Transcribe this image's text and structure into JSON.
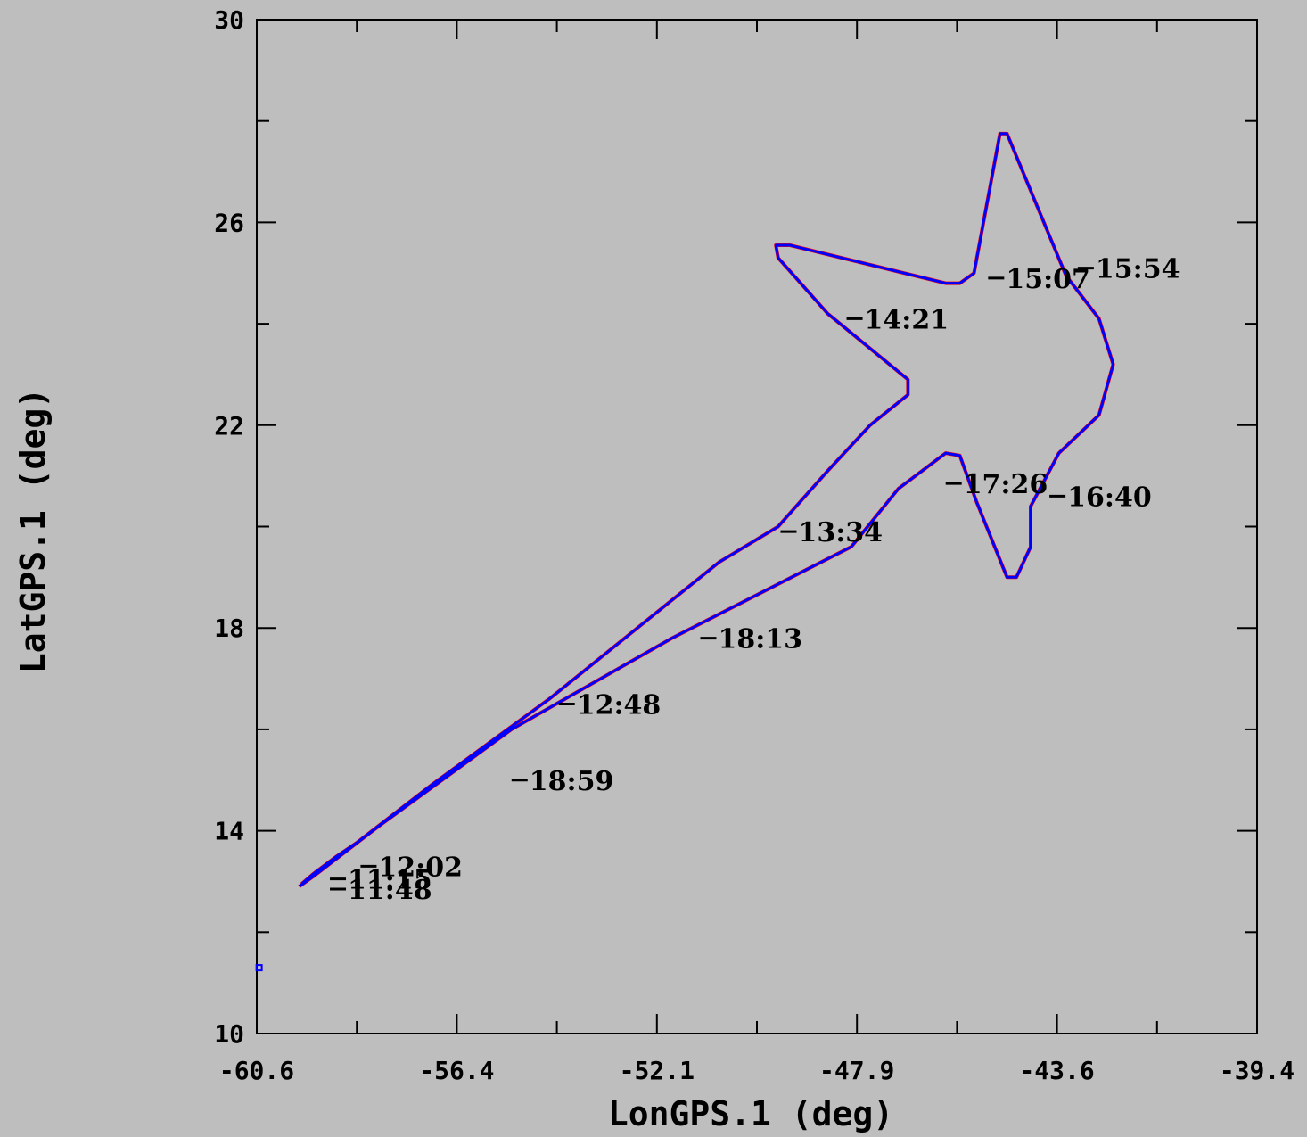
{
  "chart_data": {
    "type": "line",
    "xlabel": "LonGPS.1 (deg)",
    "ylabel": "LatGPS.1 (deg)",
    "xlim": [
      -60.6,
      -39.4
    ],
    "ylim": [
      10,
      30
    ],
    "x_ticks": [
      "-60.6",
      "-56.4",
      "-52.1",
      "-47.9",
      "-43.6",
      "-39.4"
    ],
    "y_ticks": [
      "10",
      "14",
      "18",
      "22",
      "26",
      "30"
    ],
    "colors": {
      "track": "#0000ff",
      "underlay": "#ff0000",
      "background": "#bebebe"
    },
    "series": [
      {
        "points": [
          [
            -59.65,
            12.95
          ],
          [
            -59.4,
            13.15
          ],
          [
            -58.9,
            13.5
          ],
          [
            -58.5,
            13.75
          ],
          [
            -56.9,
            14.9
          ],
          [
            -54.4,
            16.6
          ],
          [
            -50.8,
            19.3
          ],
          [
            -49.55,
            20.0
          ],
          [
            -48.5,
            21.1
          ],
          [
            -47.6,
            22.0
          ],
          [
            -46.8,
            22.6
          ],
          [
            -46.8,
            22.9
          ],
          [
            -48.5,
            24.2
          ],
          [
            -49.55,
            25.3
          ],
          [
            -49.6,
            25.55
          ],
          [
            -49.3,
            25.55
          ],
          [
            -46.0,
            24.8
          ],
          [
            -45.7,
            24.8
          ],
          [
            -45.4,
            25.0
          ],
          [
            -44.85,
            27.75
          ],
          [
            -44.7,
            27.75
          ],
          [
            -43.45,
            24.95
          ],
          [
            -42.75,
            24.1
          ],
          [
            -42.45,
            23.2
          ],
          [
            -42.75,
            22.2
          ],
          [
            -43.6,
            21.45
          ],
          [
            -44.2,
            20.4
          ],
          [
            -44.2,
            19.6
          ],
          [
            -44.5,
            19.0
          ],
          [
            -44.7,
            19.0
          ],
          [
            -45.35,
            20.5
          ],
          [
            -45.7,
            21.4
          ],
          [
            -46.0,
            21.45
          ],
          [
            -47.0,
            20.75
          ],
          [
            -48.0,
            19.6
          ],
          [
            -51.8,
            17.8
          ],
          [
            -55.2,
            16.0
          ],
          [
            -58.0,
            14.1
          ],
          [
            -59.4,
            13.1
          ],
          [
            -59.7,
            12.9
          ]
        ]
      }
    ],
    "isolated_points": [
      [
        -60.55,
        11.3
      ]
    ],
    "annotations": [
      {
        "text": "11:15",
        "x": -59.05,
        "y": 13.05
      },
      {
        "text": "11:48",
        "x": -59.05,
        "y": 12.85
      },
      {
        "text": "12:02",
        "x": -58.4,
        "y": 13.3
      },
      {
        "text": "12:48",
        "x": -54.2,
        "y": 16.5
      },
      {
        "text": "13:34",
        "x": -49.5,
        "y": 19.9
      },
      {
        "text": "14:21",
        "x": -48.1,
        "y": 24.1
      },
      {
        "text": "15:07",
        "x": -45.1,
        "y": 24.9
      },
      {
        "text": "15:54",
        "x": -43.2,
        "y": 25.1
      },
      {
        "text": "16:40",
        "x": -43.8,
        "y": 20.6
      },
      {
        "text": "17:26",
        "x": -46.0,
        "y": 20.85
      },
      {
        "text": "18:13",
        "x": -51.2,
        "y": 17.8
      },
      {
        "text": "18:59",
        "x": -55.2,
        "y": 15.0
      }
    ]
  }
}
